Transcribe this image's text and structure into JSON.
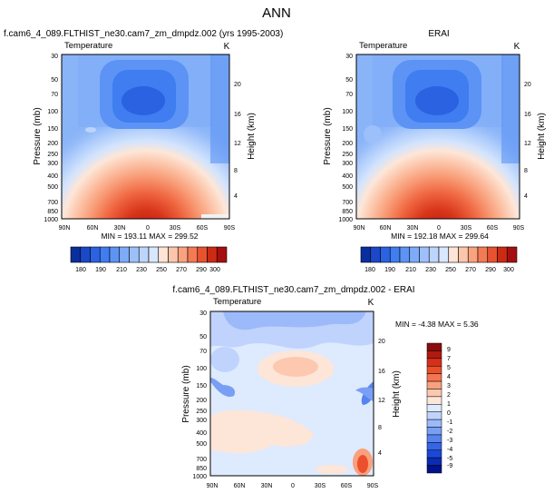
{
  "figure": {
    "title": "ANN"
  },
  "colors": {
    "temp_scale": [
      "#0a2e9e",
      "#1b48c9",
      "#2a62e2",
      "#3f7df0",
      "#5c93f5",
      "#7eabf8",
      "#9dc0fb",
      "#bcd5fd",
      "#d8e7fe",
      "#fde4d4",
      "#fcc6ab",
      "#f9a27f",
      "#f47a54",
      "#e8522e",
      "#cc2a12",
      "#a50f0f"
    ],
    "diff_scale": [
      "#00138a",
      "#0a2cb5",
      "#1a48d6",
      "#3566e6",
      "#5584ef",
      "#799ff5",
      "#9cbaf9",
      "#bfd3fc",
      "#deeafe",
      "#fde6d8",
      "#fcc9b0",
      "#f9a07d",
      "#f57550",
      "#ec4f2c",
      "#d6301a",
      "#b01a10",
      "#8a0c0c"
    ]
  },
  "chart_data": [
    {
      "type": "heatmap",
      "title": "f.cam6_4_089.FLTHIST_ne30.cam7_zm_dmpdz.002 (yrs 1995-2003)",
      "variable": "Temperature",
      "units": "K",
      "ylabel": "Pressure (mb)",
      "y2label": "Height (km)",
      "x_ticks": [
        "90N",
        "60N",
        "30N",
        "0",
        "30S",
        "60S",
        "90S"
      ],
      "y_ticks": [
        "30",
        "50",
        "70",
        "100",
        "150",
        "200",
        "250",
        "300",
        "400",
        "500",
        "700",
        "850",
        "1000"
      ],
      "y2_ticks": [
        "20",
        "16",
        "12",
        "8",
        "4"
      ],
      "stats": "MIN = 193.11   MAX = 299.52",
      "colorbar_labels": [
        "180",
        "190",
        "210",
        "230",
        "250",
        "270",
        "290",
        "300"
      ]
    },
    {
      "type": "heatmap",
      "title": "ERAI",
      "variable": "Temperature",
      "units": "K",
      "ylabel": "Pressure (mb)",
      "y2label": "Height (km)",
      "x_ticks": [
        "90N",
        "60N",
        "30N",
        "0",
        "30S",
        "60S",
        "90S"
      ],
      "y_ticks": [
        "30",
        "50",
        "70",
        "100",
        "150",
        "200",
        "250",
        "300",
        "400",
        "500",
        "700",
        "850",
        "1000"
      ],
      "y2_ticks": [
        "20",
        "16",
        "12",
        "8",
        "4"
      ],
      "stats": "MIN = 192.18   MAX = 299.64",
      "colorbar_labels": [
        "180",
        "190",
        "210",
        "230",
        "250",
        "270",
        "290",
        "300"
      ]
    },
    {
      "type": "heatmap",
      "title": "f.cam6_4_089.FLTHIST_ne30.cam7_zm_dmpdz.002 - ERAI",
      "variable": "Temperature",
      "units": "K",
      "ylabel": "Pressure (mb)",
      "y2label": "Height (km)",
      "x_ticks": [
        "90N",
        "60N",
        "30N",
        "0",
        "30S",
        "60S",
        "90S"
      ],
      "y_ticks": [
        "30",
        "50",
        "70",
        "100",
        "150",
        "200",
        "250",
        "300",
        "400",
        "500",
        "700",
        "850",
        "1000"
      ],
      "y2_ticks": [
        "20",
        "16",
        "12",
        "8",
        "4"
      ],
      "stats": "MIN = -4.38   MAX =  5.36",
      "colorbar_labels": [
        "9",
        "7",
        "5",
        "4",
        "3",
        "2",
        "1",
        "0",
        "-1",
        "-2",
        "-3",
        "-4",
        "-5",
        "-7",
        "-9"
      ]
    }
  ]
}
